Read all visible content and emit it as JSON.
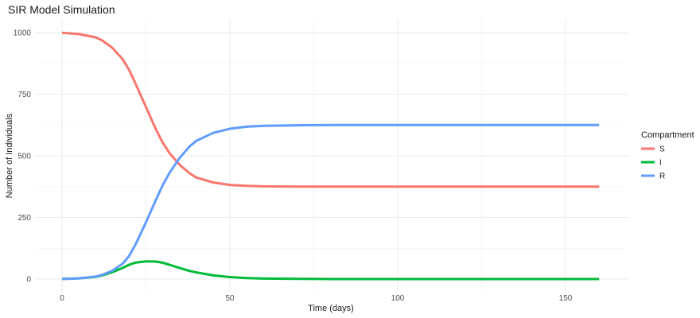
{
  "chart_data": {
    "type": "line",
    "title": "SIR Model Simulation",
    "xlabel": "Time (days)",
    "ylabel": "Number of Individuals",
    "xlim": [
      0,
      160
    ],
    "ylim": [
      0,
      1000
    ],
    "x_ticks": [
      0,
      50,
      100,
      150
    ],
    "y_ticks": [
      0,
      250,
      500,
      750,
      1000
    ],
    "grid": true,
    "legend": {
      "title": "Compartment",
      "placement": "right"
    },
    "x": [
      0,
      5,
      10,
      12,
      15,
      18,
      20,
      22,
      25,
      28,
      30,
      32,
      35,
      38,
      40,
      45,
      50,
      55,
      60,
      70,
      80,
      100,
      120,
      140,
      160
    ],
    "series": [
      {
        "name": "S",
        "color": "#F8766D",
        "values": [
          999,
          994,
          981,
          968,
          938,
          893,
          848,
          790,
          698,
          606,
          553,
          512,
          464,
          429,
          412,
          392,
          382,
          378,
          376,
          375,
          375,
          375,
          375,
          375,
          375
        ]
      },
      {
        "name": "I",
        "color": "#00BA38",
        "values": [
          1,
          3,
          9,
          15,
          28,
          45,
          58,
          67,
          72,
          71,
          66,
          58,
          45,
          33,
          27,
          15,
          8,
          4,
          2,
          1,
          0,
          0,
          0,
          0,
          0
        ]
      },
      {
        "name": "R",
        "color": "#619CFF",
        "values": [
          0,
          3,
          10,
          17,
          34,
          62,
          94,
          143,
          230,
          323,
          381,
          430,
          491,
          538,
          561,
          593,
          610,
          618,
          622,
          624,
          625,
          625,
          625,
          625,
          625
        ]
      }
    ]
  }
}
